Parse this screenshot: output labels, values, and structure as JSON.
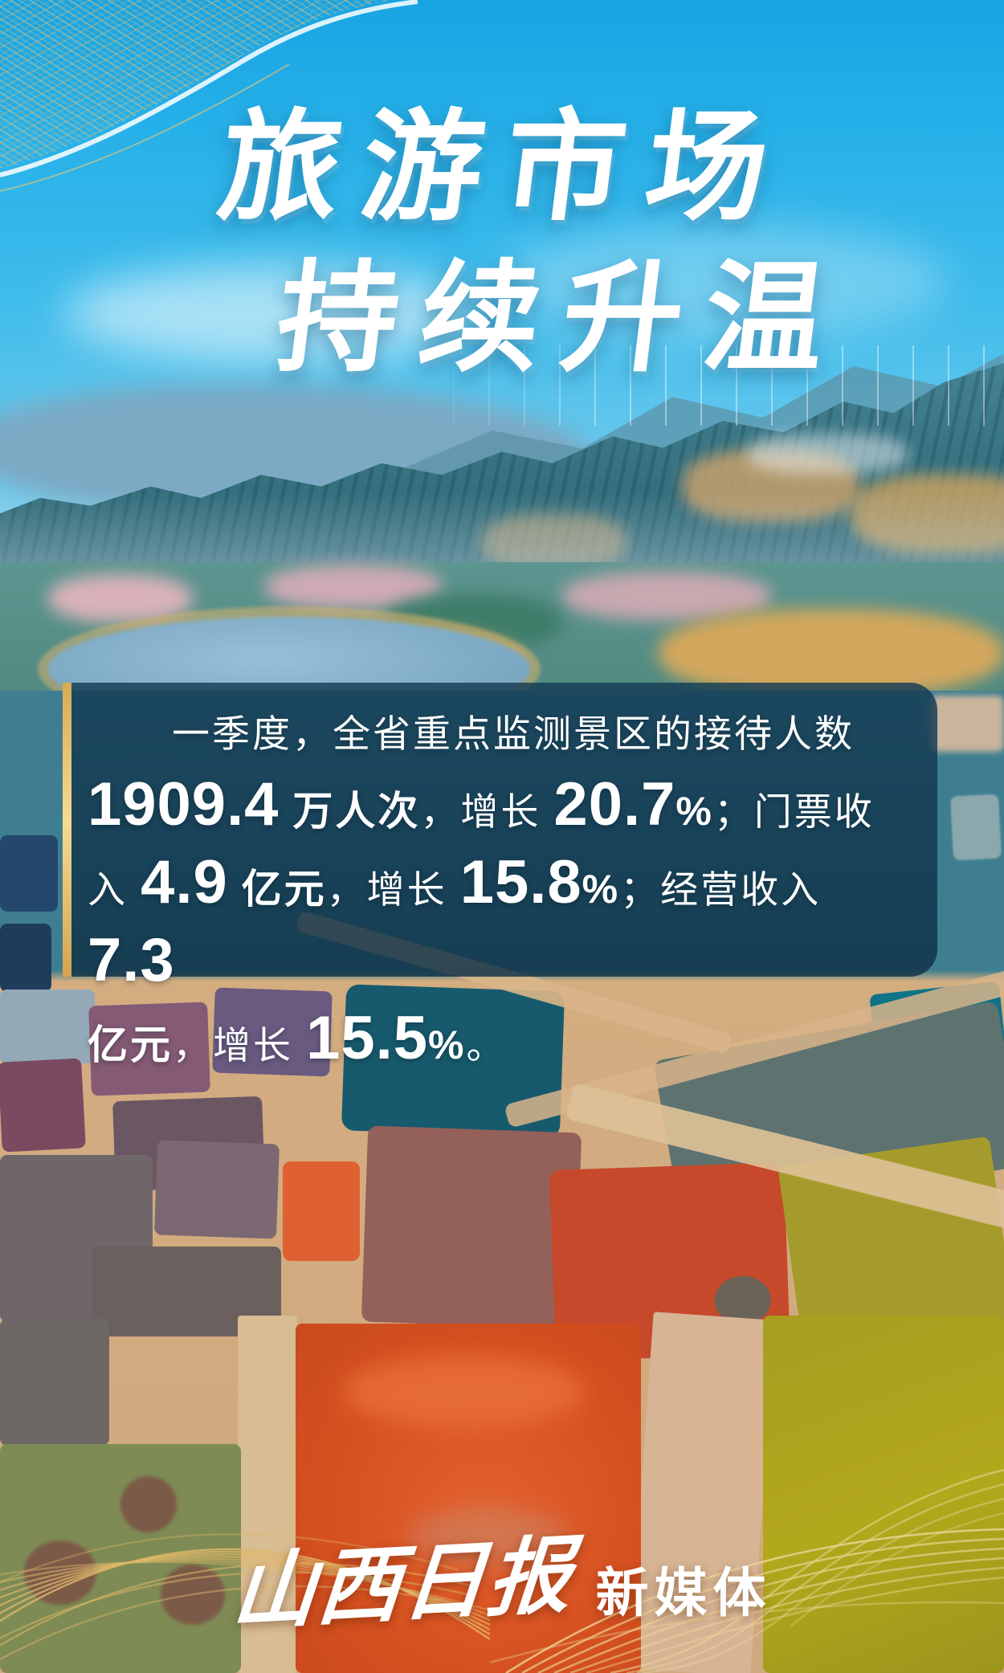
{
  "poster": {
    "title": {
      "line1": "旅游市场",
      "line2": "持续升温"
    },
    "infobox": {
      "segments": [
        {
          "text": "一季度，全省重点监测景区的接待人数",
          "style": "regular",
          "break_after": true
        },
        {
          "text": "1909.4",
          "style": "number"
        },
        {
          "text": " 万人次",
          "style": "unit"
        },
        {
          "text": "，增长 ",
          "style": "regular"
        },
        {
          "text": "20.7",
          "style": "number"
        },
        {
          "text": "%",
          "style": "percent"
        },
        {
          "text": "；门票收",
          "style": "regular",
          "break_after": true
        },
        {
          "text": "入 ",
          "style": "regular"
        },
        {
          "text": "4.9",
          "style": "number"
        },
        {
          "text": " 亿元",
          "style": "unit"
        },
        {
          "text": "，增长 ",
          "style": "regular"
        },
        {
          "text": "15.8",
          "style": "number"
        },
        {
          "text": "%",
          "style": "percent"
        },
        {
          "text": "；经营收入 ",
          "style": "regular"
        },
        {
          "text": "7.3",
          "style": "number",
          "break_after": true
        },
        {
          "text": "亿元",
          "style": "unit"
        },
        {
          "text": "，增长 ",
          "style": "regular"
        },
        {
          "text": "15.5",
          "style": "number"
        },
        {
          "text": "%",
          "style": "percent"
        },
        {
          "text": "。",
          "style": "regular"
        }
      ],
      "plain_text": "一季度，全省重点监测景区的接待人数1909.4万人次，增长20.7%；门票收入4.9亿元，增长15.8%；经营收入7.3亿元，增长15.5%。",
      "statistics": [
        {
          "metric": "重点监测景区接待人数",
          "value": "1909.4",
          "unit": "万人次",
          "growth": "20.7%"
        },
        {
          "metric": "门票收入",
          "value": "4.9",
          "unit": "亿元",
          "growth": "15.8%"
        },
        {
          "metric": "经营收入",
          "value": "7.3",
          "unit": "亿元",
          "growth": "15.5%"
        }
      ],
      "period": "一季度",
      "region": "全省"
    },
    "footer": {
      "brand_calligraphy": "山西日报",
      "brand_suffix": "新媒体"
    },
    "colors": {
      "sky": "#27b1e9",
      "box_background": "rgba(17,55,78,0.82)",
      "gold_accent": "#e3b761",
      "text": "#ffffff",
      "gold_lines": "#dcb25e",
      "red_pond": "#d5501f",
      "olive_pond": "#b2a81c",
      "teal_pond": "#175a6d"
    },
    "decorations": [
      "gold-mesh-wave-top-left",
      "gold-arc-lines-bottom-left",
      "gold-arc-lines-bottom-right"
    ]
  }
}
